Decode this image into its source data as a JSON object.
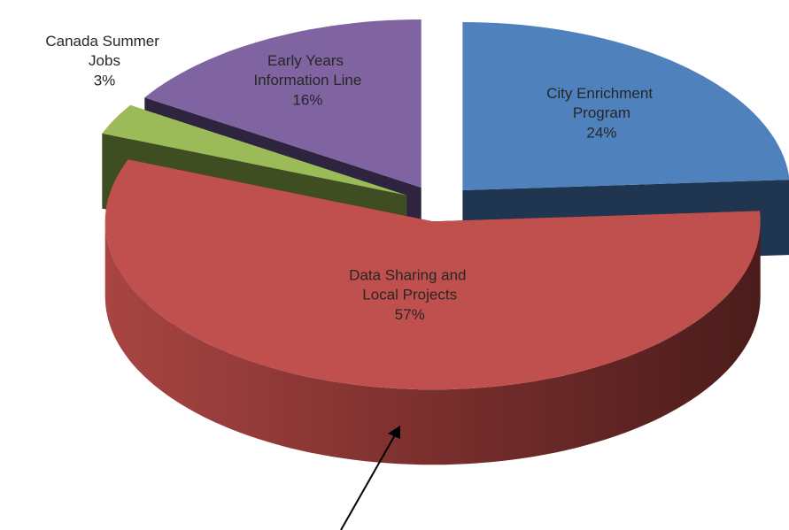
{
  "chart_data": {
    "type": "pie",
    "categories": [
      "City Enrichment Program",
      "Data Sharing and Local Projects",
      "Canada Summer Jobs",
      "Early Years Information Line"
    ],
    "values": [
      24,
      57,
      3,
      16
    ],
    "value_labels": [
      "24%",
      "57%",
      "3%",
      "16%"
    ],
    "colors": [
      "#4f81bd",
      "#c0504d",
      "#9bbb59",
      "#8064a2"
    ],
    "side_colors": [
      "#1f3550",
      "#7a2f2d",
      "#3f4d22",
      "#2e2440"
    ]
  }
}
